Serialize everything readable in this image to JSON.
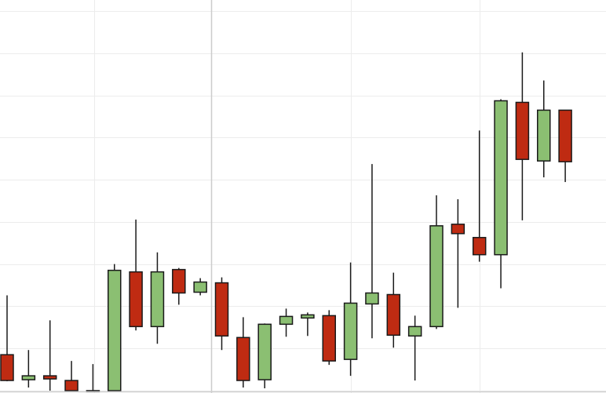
{
  "chart_data": {
    "type": "candlestick",
    "title": "",
    "xlabel": "",
    "ylabel": "",
    "ylim": [
      0,
      100
    ],
    "grid": true,
    "crosshair_index": 9,
    "colors": {
      "up": "#8bbf72",
      "down": "#bf2b12",
      "wick": "#1a1a1a",
      "grid": "#ececec",
      "crosshair": "#cccccc"
    },
    "candles": [
      {
        "open": 9.2,
        "high": 24.4,
        "low": 2.4,
        "close": 2.6
      },
      {
        "open": 2.8,
        "high": 10.4,
        "low": 0.8,
        "close": 3.8
      },
      {
        "open": 3.8,
        "high": 18.0,
        "low": 0.0,
        "close": 3.0
      },
      {
        "open": 2.6,
        "high": 7.6,
        "low": 0.0,
        "close": 0.0
      },
      {
        "open": 0.0,
        "high": 6.8,
        "low": 0.0,
        "close": 0.0
      },
      {
        "open": 0.0,
        "high": 32.4,
        "low": 0.0,
        "close": 30.8
      },
      {
        "open": 30.4,
        "high": 43.8,
        "low": 15.4,
        "close": 16.4
      },
      {
        "open": 16.4,
        "high": 35.4,
        "low": 12.0,
        "close": 30.4
      },
      {
        "open": 31.0,
        "high": 31.4,
        "low": 22.0,
        "close": 25.0
      },
      {
        "open": 25.2,
        "high": 28.8,
        "low": 24.4,
        "close": 27.8
      },
      {
        "open": 27.6,
        "high": 29.0,
        "low": 10.4,
        "close": 14.0
      },
      {
        "open": 13.6,
        "high": 18.8,
        "low": 0.8,
        "close": 2.6
      },
      {
        "open": 2.8,
        "high": 17.2,
        "low": 0.6,
        "close": 17.0
      },
      {
        "open": 17.0,
        "high": 21.0,
        "low": 13.8,
        "close": 19.0
      },
      {
        "open": 18.6,
        "high": 20.0,
        "low": 14.0,
        "close": 19.4
      },
      {
        "open": 19.2,
        "high": 20.6,
        "low": 6.6,
        "close": 7.6
      },
      {
        "open": 8.0,
        "high": 32.8,
        "low": 3.8,
        "close": 22.4
      },
      {
        "open": 22.2,
        "high": 58.0,
        "low": 13.4,
        "close": 25.0
      },
      {
        "open": 24.6,
        "high": 30.2,
        "low": 11.0,
        "close": 14.2
      },
      {
        "open": 14.0,
        "high": 19.2,
        "low": 2.6,
        "close": 16.4
      },
      {
        "open": 16.4,
        "high": 50.0,
        "low": 15.8,
        "close": 42.2
      },
      {
        "open": 42.6,
        "high": 49.0,
        "low": 21.2,
        "close": 40.2
      },
      {
        "open": 39.2,
        "high": 66.6,
        "low": 33.0,
        "close": 34.8
      },
      {
        "open": 34.8,
        "high": 74.6,
        "low": 26.2,
        "close": 74.2
      },
      {
        "open": 73.8,
        "high": 86.6,
        "low": 43.6,
        "close": 59.2
      },
      {
        "open": 58.8,
        "high": 79.4,
        "low": 54.6,
        "close": 71.8
      },
      {
        "open": 71.8,
        "high": 71.8,
        "low": 53.4,
        "close": 58.6
      }
    ]
  }
}
